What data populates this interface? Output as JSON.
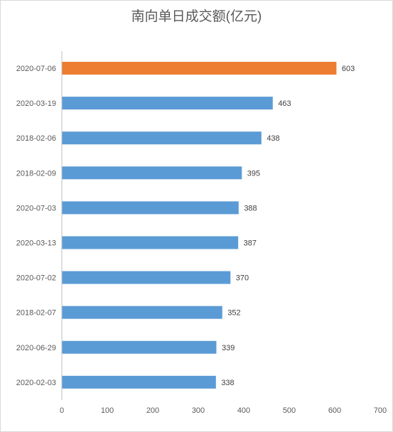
{
  "chart_data": {
    "type": "bar",
    "orientation": "horizontal",
    "title": "南向单日成交额(亿元)",
    "categories": [
      "2020-07-06",
      "2020-03-19",
      "2018-02-06",
      "2018-02-09",
      "2020-07-03",
      "2020-03-13",
      "2020-07-02",
      "2018-02-07",
      "2020-06-29",
      "2020-02-03"
    ],
    "values": [
      603,
      463,
      438,
      395,
      388,
      387,
      370,
      352,
      339,
      338
    ],
    "highlight_index": 0,
    "colors": {
      "bar": "#5B9BD5",
      "highlight": "#ED7D31",
      "axis": "#BFBFBF",
      "border": "#D9D9D9"
    },
    "xlim": [
      0,
      700
    ],
    "xticks": [
      "0",
      "100",
      "200",
      "300",
      "400",
      "500",
      "600",
      "700"
    ],
    "grid": false,
    "legend": "none",
    "data_labels": true
  }
}
